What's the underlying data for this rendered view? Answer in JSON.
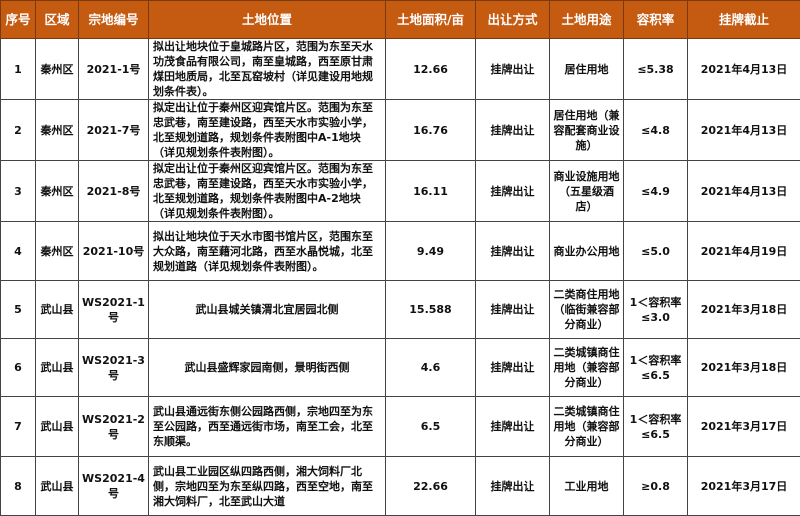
{
  "headers": [
    "序号",
    "区域",
    "宗地编号",
    "土地位置",
    "土地面积/亩",
    "出让方式",
    "土地用途",
    "容积率",
    "挂牌截止"
  ],
  "rows": [
    {
      "no": "1",
      "area": "秦州区",
      "code": "2021-1号",
      "location": "拟出让地块位于皇城路片区，范围为东至天水功茂食品有限公司，南至皇城路，西至原甘肃煤田地质局，北至瓦窑坡村（详见建设用地规划条件表）。",
      "size": "12.66",
      "method": "挂牌出让",
      "use": "居住用地",
      "far": "≤5.38",
      "deadline": "2021年4月13日"
    },
    {
      "no": "2",
      "area": "秦州区",
      "code": "2021-7号",
      "location": "拟定出让位于秦州区迎宾馆片区。范围为东至忠武巷，南至建设路，西至天水市实验小学，北至规划道路，规划条件表附图中A-1地块（详见规划条件表附图）。",
      "size": "16.76",
      "method": "挂牌出让",
      "use": "居住用地（兼容配套商业设施）",
      "far": "≤4.8",
      "deadline": "2021年4月13日"
    },
    {
      "no": "3",
      "area": "秦州区",
      "code": "2021-8号",
      "location": "拟定出让位于秦州区迎宾馆片区。范围为东至忠武巷，南至建设路，西至天水市实验小学，北至规划道路，规划条件表附图中A-2地块（详见规划条件表附图）。",
      "size": "16.11",
      "method": "挂牌出让",
      "use": "商业设施用地（五星级酒店）",
      "far": "≤4.9",
      "deadline": "2021年4月13日"
    },
    {
      "no": "4",
      "area": "秦州区",
      "code": "2021-10号",
      "location": "拟出让地块位于天水市图书馆片区，范围东至大众路，南至藉河北路，西至水晶悦城，北至规划道路（详见规划条件表附图）。",
      "size": "9.49",
      "method": "挂牌出让",
      "use": "商业办公用地",
      "far": "≤5.0",
      "deadline": "2021年4月19日"
    },
    {
      "no": "5",
      "area": "武山县",
      "code": "WS2021-1号",
      "location": "武山县城关镇渭北宜居园北侧",
      "size": "15.588",
      "method": "挂牌出让",
      "use": "二类商住用地（临街兼容部分商业）",
      "far": "1＜容积率≤3.0",
      "deadline": "2021年3月18日"
    },
    {
      "no": "6",
      "area": "武山县",
      "code": "WS2021-3号",
      "location": "武山县盛辉家园南侧，景明街西侧",
      "size": "4.6",
      "method": "挂牌出让",
      "use": "二类城镇商住用地（兼容部分商业）",
      "far": "1＜容积率≤6.5",
      "deadline": "2021年3月18日"
    },
    {
      "no": "7",
      "area": "武山县",
      "code": "WS2021-2号",
      "location": "武山县通远街东侧公园路西侧，宗地四至为东至公园路，西至通远街市场，南至工会，北至东顺渠。",
      "size": "6.5",
      "method": "挂牌出让",
      "use": "二类城镇商住用地（兼容部分商业）",
      "far": "1＜容积率≤6.5",
      "deadline": "2021年3月17日"
    },
    {
      "no": "8",
      "area": "武山县",
      "code": "WS2021-4号",
      "location": "武山县工业园区纵四路西侧，湘大饲料厂北侧，宗地四至为东至纵四路，西至空地，南至湘大饲料厂，北至武山大道",
      "size": "22.66",
      "method": "挂牌出让",
      "use": "工业用地",
      "far": "≥0.8",
      "deadline": "2021年3月17日"
    }
  ],
  "colors": {
    "header_bg": "#c55a11",
    "header_text": "#ffffff",
    "border": "#444444"
  }
}
